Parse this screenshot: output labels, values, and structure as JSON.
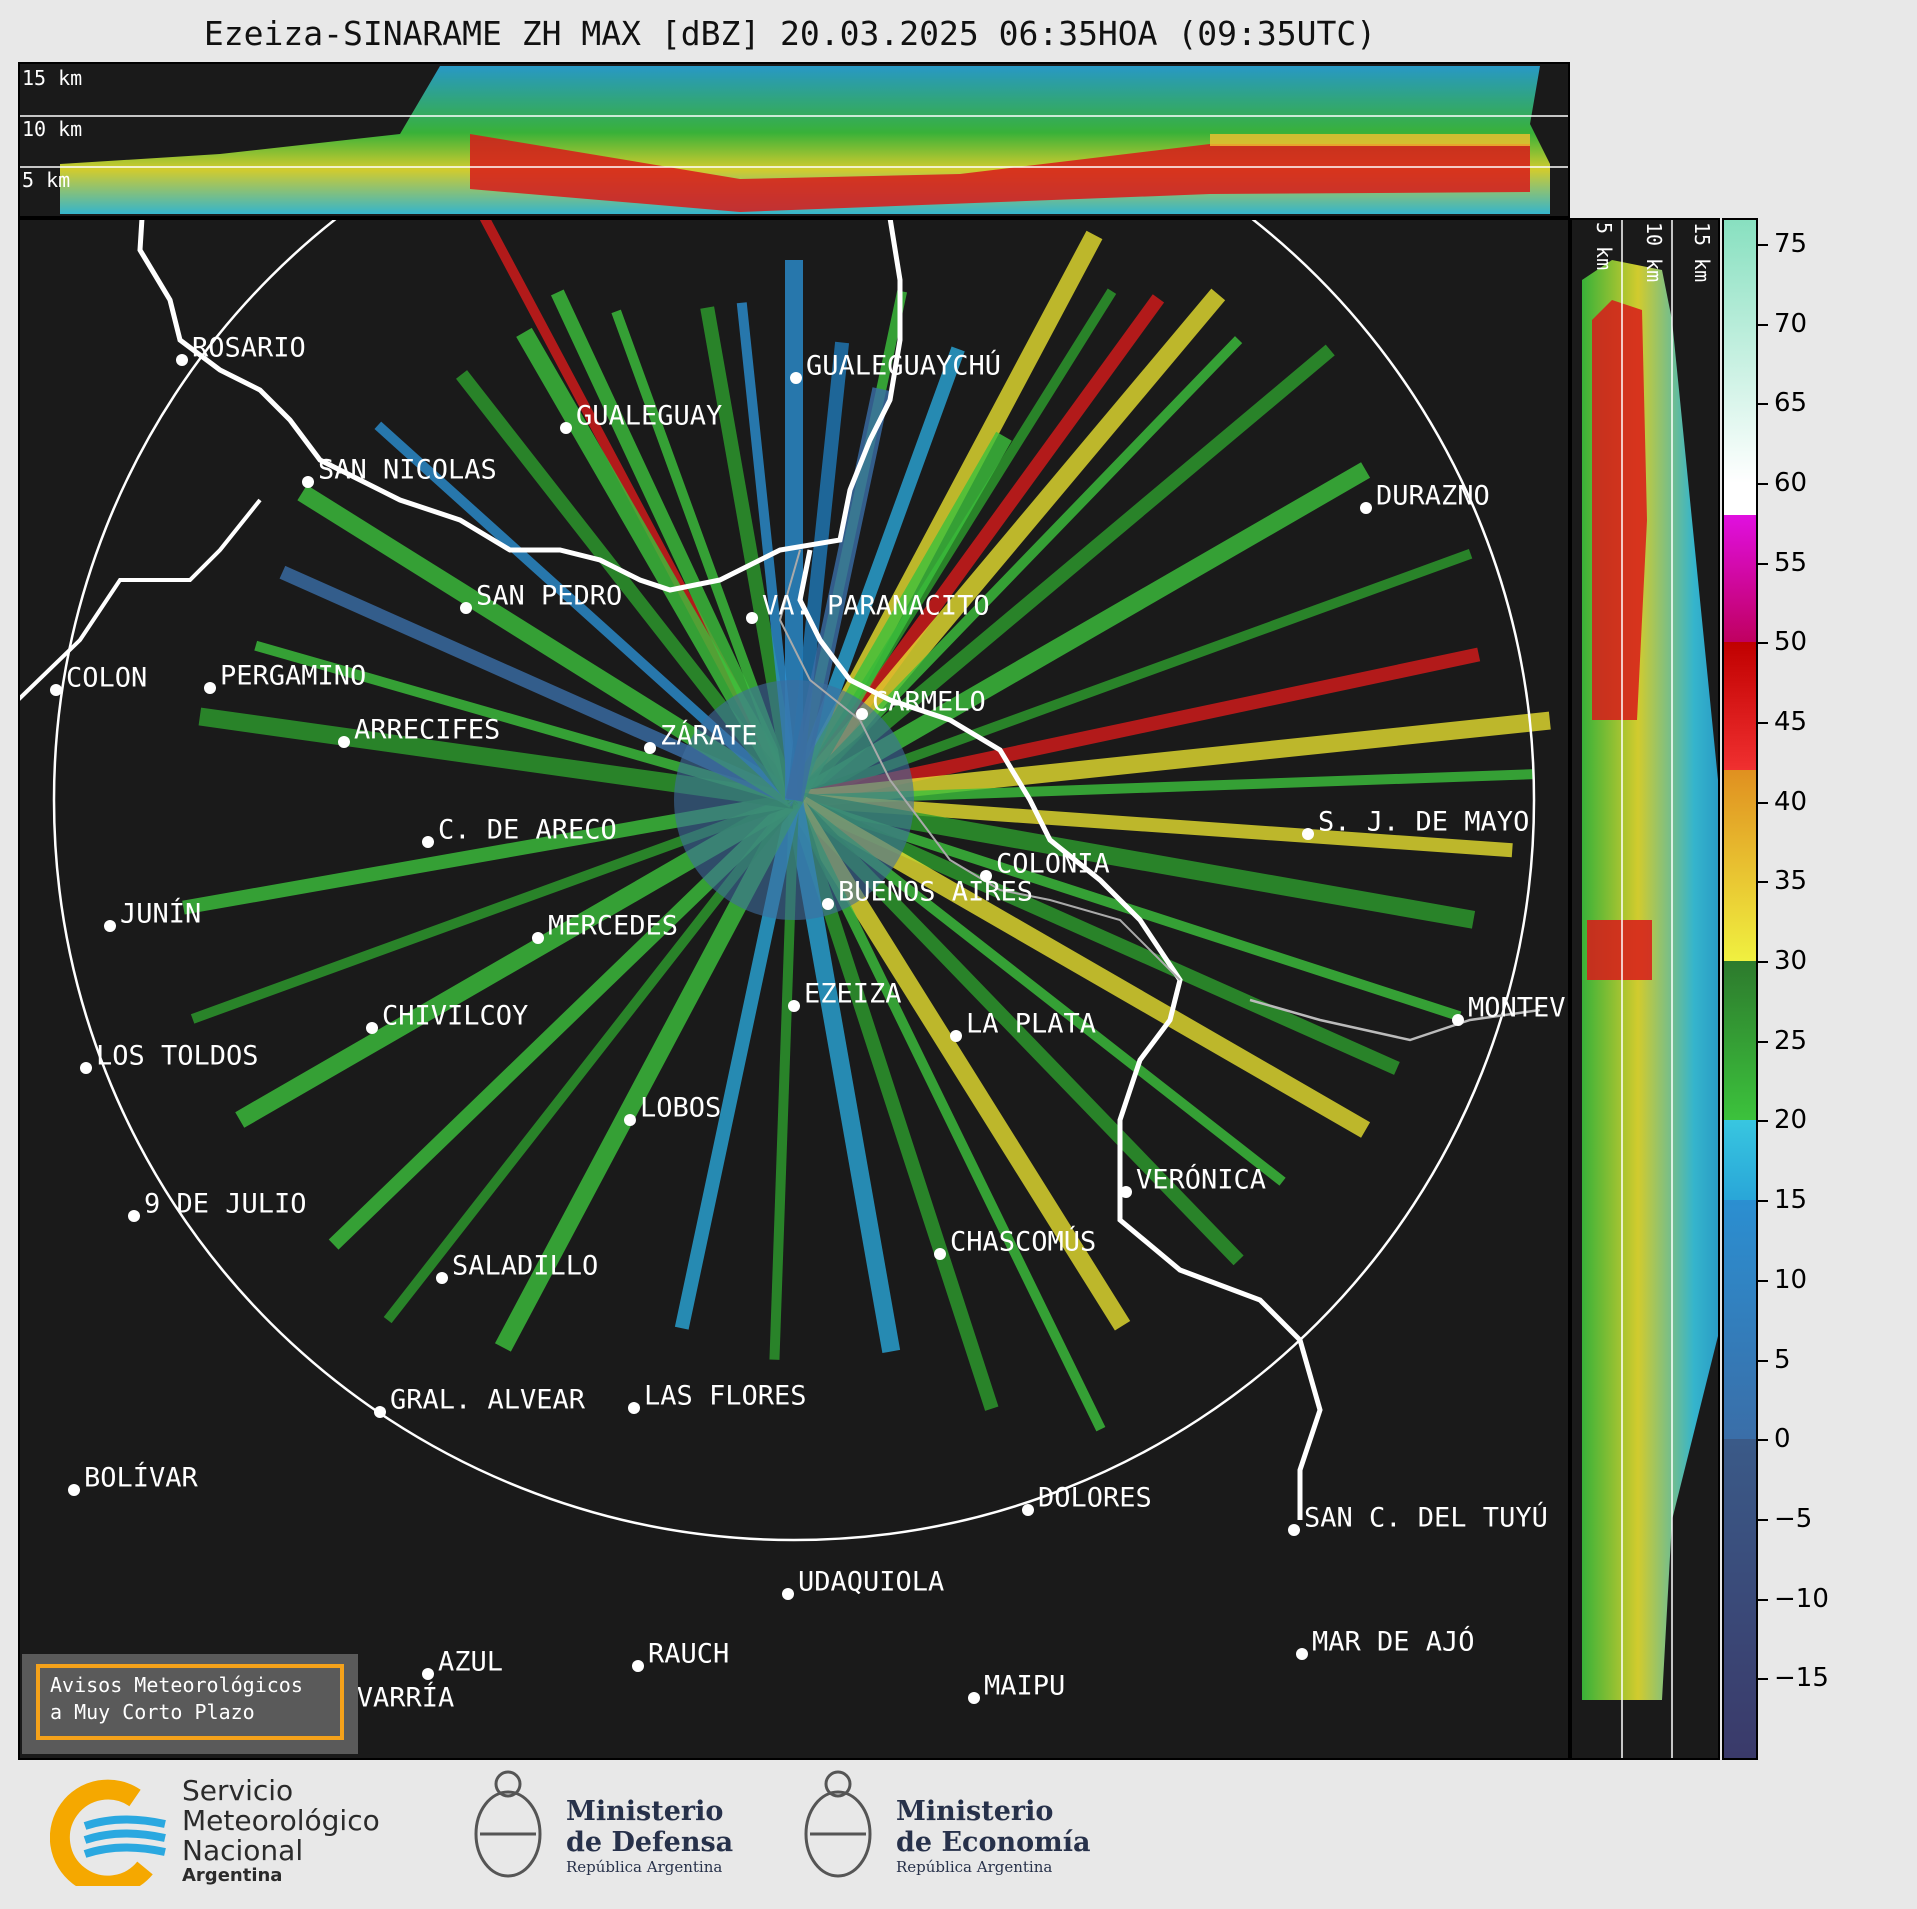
{
  "title": "Ezeiza-SINARAME ZH MAX [dBZ] 20.03.2025 06:35HOA (09:35UTC)",
  "altitude_labels": [
    "15 km",
    "10 km",
    "5 km"
  ],
  "cities": [
    {
      "name": "ROSARIO",
      "id": "rosario"
    },
    {
      "name": "GUALEGUAYCHÚ",
      "id": "gualeguaychu"
    },
    {
      "name": "GUALEGUAY",
      "id": "gualeguay"
    },
    {
      "name": "SAN NICOLAS",
      "id": "san-nicolas"
    },
    {
      "name": "DURAZNO",
      "id": "durazno"
    },
    {
      "name": "SAN PEDRO",
      "id": "san-pedro"
    },
    {
      "name": "VA. PARANACITO",
      "id": "va-paranacito"
    },
    {
      "name": "COLON",
      "id": "colon"
    },
    {
      "name": "PERGAMINO",
      "id": "pergamino"
    },
    {
      "name": "CARMELO",
      "id": "carmelo"
    },
    {
      "name": "ARRECIFES",
      "id": "arrecifes"
    },
    {
      "name": "ZÁRATE",
      "id": "zarate"
    },
    {
      "name": "S. J. DE MAYO",
      "id": "sj-de-mayo"
    },
    {
      "name": "C. DE ARECO",
      "id": "c-de-areco"
    },
    {
      "name": "COLONIA",
      "id": "colonia"
    },
    {
      "name": "JUNÍN",
      "id": "junin"
    },
    {
      "name": "BUENOS AIRES",
      "id": "buenos-aires"
    },
    {
      "name": "MERCEDES",
      "id": "mercedes"
    },
    {
      "name": "EZEIZA",
      "id": "ezeiza"
    },
    {
      "name": "CHIVILCOY",
      "id": "chivilcoy"
    },
    {
      "name": "LA PLATA",
      "id": "la-plata"
    },
    {
      "name": "MONTEV",
      "id": "montevideo"
    },
    {
      "name": "LOS TOLDOS",
      "id": "los-toldos"
    },
    {
      "name": "LOBOS",
      "id": "lobos"
    },
    {
      "name": "VERÓNICA",
      "id": "veronica"
    },
    {
      "name": "9 DE JULIO",
      "id": "nueve-de-julio"
    },
    {
      "name": "CHASCOMÚS",
      "id": "chascomus"
    },
    {
      "name": "SALADILLO",
      "id": "saladillo"
    },
    {
      "name": "GRAL. ALVEAR",
      "id": "gral-alvear"
    },
    {
      "name": "LAS FLORES",
      "id": "las-flores"
    },
    {
      "name": "BOLÍVAR",
      "id": "bolivar"
    },
    {
      "name": "DOLORES",
      "id": "dolores"
    },
    {
      "name": "SAN C. DEL TUYÚ",
      "id": "san-c-del-tuyu"
    },
    {
      "name": "UDAQUIOLA",
      "id": "udaquiola"
    },
    {
      "name": "MAR DE AJÓ",
      "id": "mar-de-ajo"
    },
    {
      "name": "AZUL",
      "id": "azul"
    },
    {
      "name": "RAUCH",
      "id": "rauch"
    },
    {
      "name": "OLAVARRÍA",
      "id": "olavarria"
    },
    {
      "name": "MAIPU",
      "id": "maipu"
    }
  ],
  "colorbar": {
    "ticks": [
      "75",
      "70",
      "65",
      "60",
      "55",
      "50",
      "45",
      "40",
      "35",
      "30",
      "25",
      "20",
      "15",
      "10",
      "5",
      "0",
      "−5",
      "−10",
      "−15"
    ],
    "min": -20,
    "max": 76.5
  },
  "warning": {
    "line1": "Avisos Meteorológicos",
    "line2": "a Muy Corto Plazo"
  },
  "logos": {
    "smn_line1": "Servicio",
    "smn_line2": "Meteorológico",
    "smn_line3": "Nacional",
    "smn_line4": "Argentina",
    "defensa_line1": "Ministerio",
    "defensa_line2": "de Defensa",
    "defensa_line3": "República Argentina",
    "economia_line1": "Ministerio",
    "economia_line2": "de Economía",
    "economia_line3": "República Argentina"
  },
  "colors": {
    "background": "#1a1a1a",
    "accent": "#f5a21a",
    "smn_orange": "#f5a800",
    "smn_blue": "#2aa8e0"
  }
}
